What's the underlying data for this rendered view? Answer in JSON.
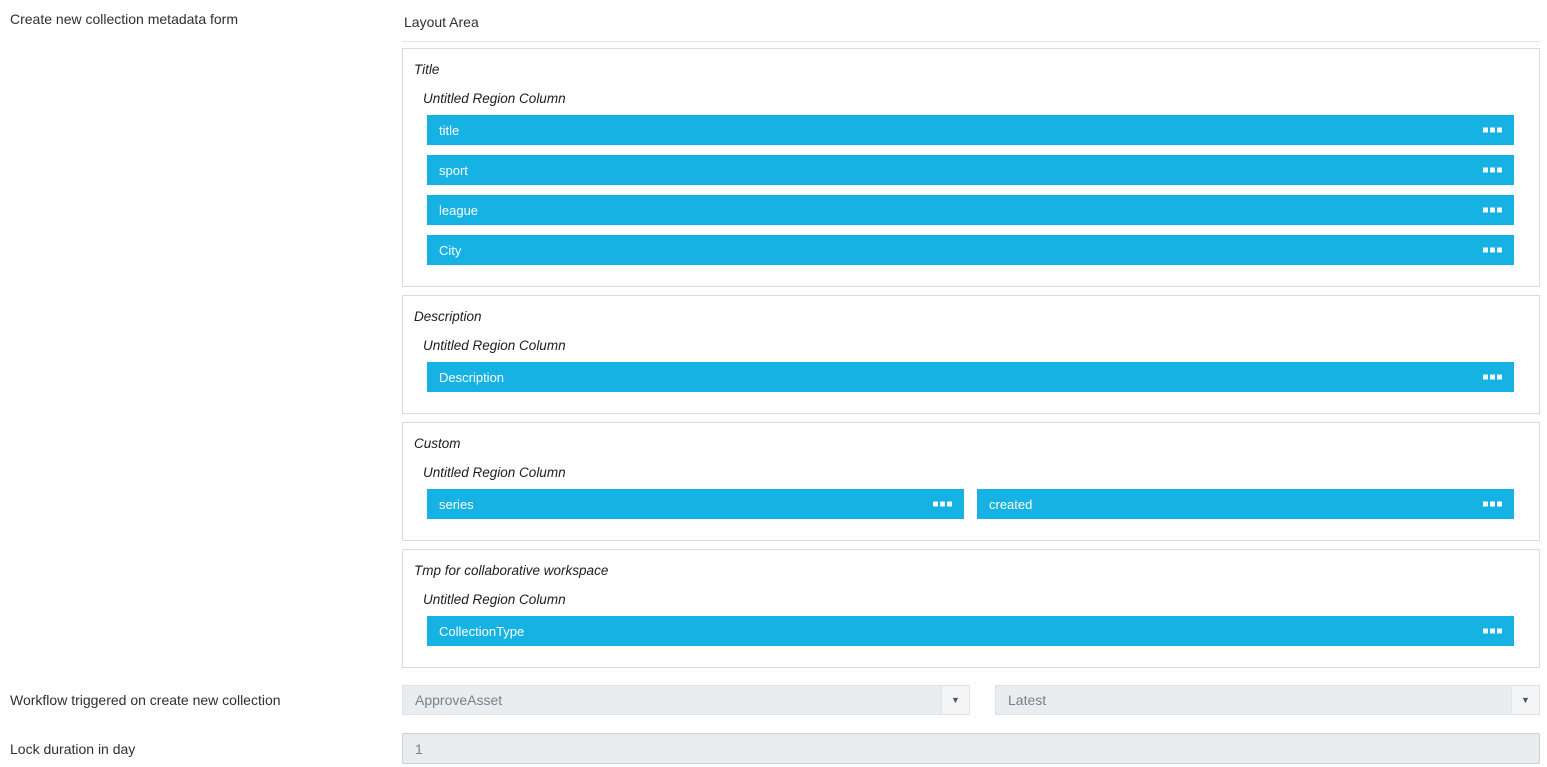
{
  "labels": {
    "form": "Create new collection metadata form",
    "workflow": "Workflow triggered on create new collection",
    "lock": "Lock duration in day"
  },
  "layout_area": {
    "title": "Layout Area",
    "sections": [
      {
        "heading": "Title",
        "region_label": "Untitled Region Column",
        "fields": [
          "title",
          "sport",
          "league",
          "City"
        ]
      },
      {
        "heading": "Description",
        "region_label": "Untitled Region Column",
        "fields": [
          "Description"
        ]
      },
      {
        "heading": "Custom",
        "region_label": "Untitled Region Column",
        "fields": [
          "series",
          "created"
        ]
      },
      {
        "heading": "Tmp for collaborative workspace",
        "region_label": "Untitled Region Column",
        "fields": [
          "CollectionType"
        ]
      }
    ]
  },
  "workflow_row": {
    "workflow_value": "ApproveAsset",
    "version_value": "Latest"
  },
  "lock_row": {
    "value": "1"
  },
  "icons": {
    "dropdown_arrow": "▼",
    "drag_handle": "three-squares"
  },
  "colors": {
    "field_blue": "#15b2e3",
    "control_bg": "#e9edf0"
  }
}
